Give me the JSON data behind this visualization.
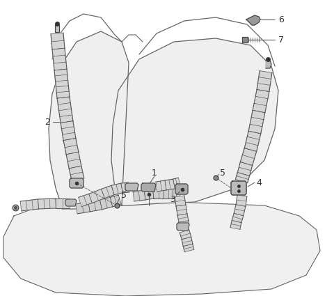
{
  "bg_color": "#ffffff",
  "line_color": "#555555",
  "label_color": "#333333",
  "label_fontsize": 9,
  "seat_color": "#f5f5f5",
  "seat_line": "#666666",
  "belt_fill": "#d8d8d8",
  "belt_line": "#555555",
  "part_fill": "#c0c0c0",
  "part_line": "#444444"
}
